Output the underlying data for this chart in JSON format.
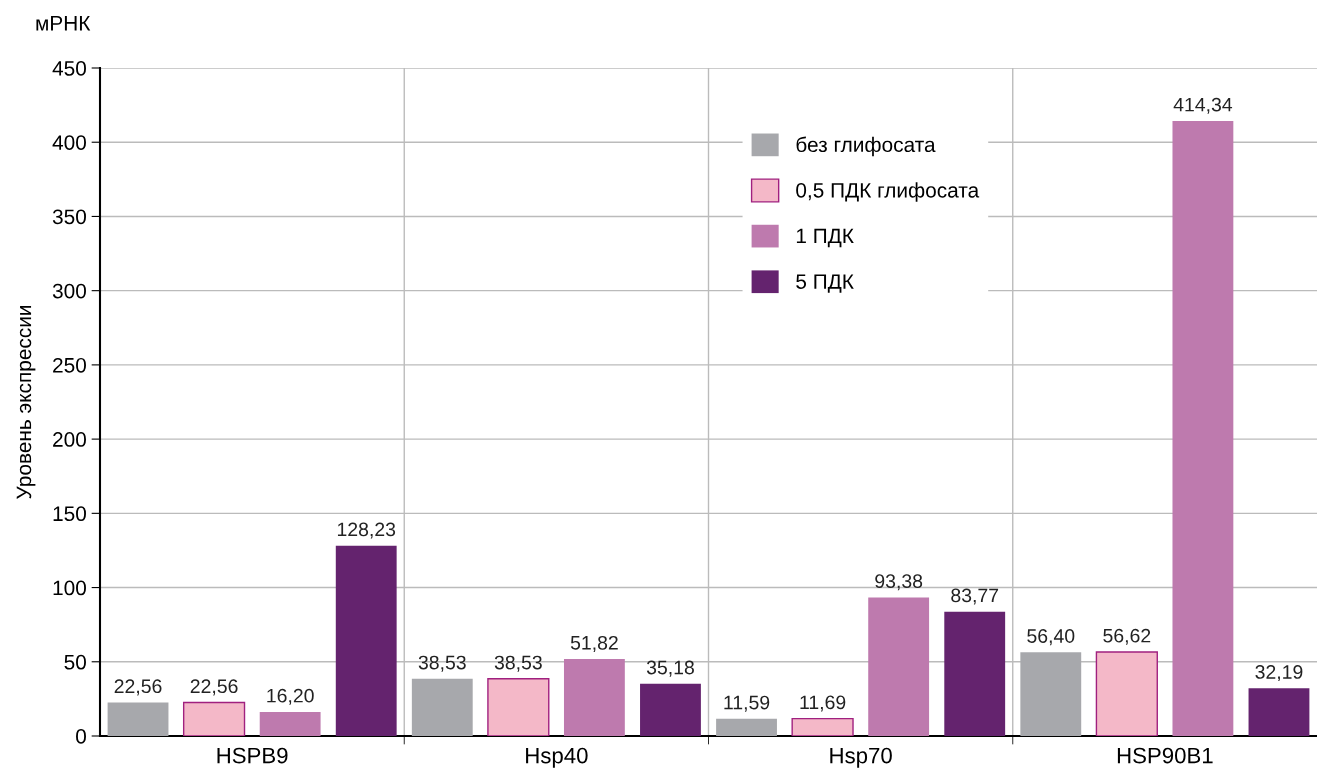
{
  "chart_data": {
    "type": "bar",
    "title": "мРНК",
    "ylabel": "Уровень экспрессии",
    "categories": [
      "HSPB9",
      "Hsp40",
      "Hsp70",
      "HSP90B1"
    ],
    "series": [
      {
        "name": "без глифосата",
        "color": "#a7a8ac",
        "values": [
          22.56,
          38.53,
          11.59,
          56.4
        ],
        "value_labels": [
          "22,56",
          "38,53",
          "11,59",
          "56,40"
        ]
      },
      {
        "name": "0,5 ПДК глифосата",
        "color": "#f4b8c8",
        "values": [
          22.56,
          38.53,
          11.69,
          56.62
        ],
        "value_labels": [
          "22,56",
          "38,53",
          "11,69",
          "56,62"
        ]
      },
      {
        "name": "1 ПДК",
        "color": "#be7aae",
        "values": [
          16.2,
          51.82,
          93.38,
          414.34
        ],
        "value_labels": [
          "16,20",
          "51,82",
          "93,38",
          "414,34"
        ]
      },
      {
        "name": "5 ПДК",
        "color": "#64236e",
        "values": [
          128.23,
          35.18,
          83.77,
          32.19
        ],
        "value_labels": [
          "128,23",
          "35,18",
          "83,77",
          "32,19"
        ]
      }
    ],
    "ylim": [
      0,
      450
    ],
    "yticks": [
      0,
      50,
      100,
      150,
      200,
      250,
      300,
      350,
      400,
      450
    ],
    "grid": true,
    "legend": "top"
  }
}
